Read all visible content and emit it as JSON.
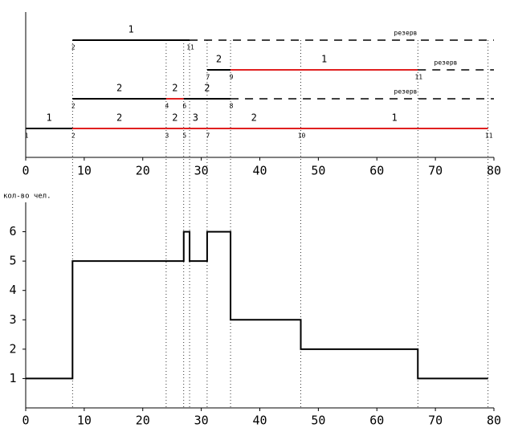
{
  "chart_data": [
    {
      "type": "gantt",
      "xlim": [
        0,
        80
      ],
      "xticks": [
        0,
        10,
        20,
        30,
        40,
        50,
        60,
        70,
        80
      ],
      "guides": [
        8,
        24,
        27,
        28,
        31,
        35,
        47,
        67,
        79
      ],
      "rows": [
        {
          "segments": [
            {
              "start": 8,
              "end": 28,
              "label": "1",
              "color": "#000000",
              "dashed": false
            },
            {
              "start": 28,
              "end": 80,
              "label": "резерв",
              "color": "#000000",
              "dashed": true
            }
          ],
          "nodes": [
            {
              "x": 8,
              "label": "2"
            },
            {
              "x": 28,
              "label": "11"
            }
          ]
        },
        {
          "segments": [
            {
              "start": 31,
              "end": 35,
              "label": "2",
              "color": "#000000",
              "dashed": false
            },
            {
              "start": 35,
              "end": 67,
              "label": "1",
              "color": "#e02020",
              "dashed": false
            },
            {
              "start": 67,
              "end": 80,
              "label": "резерв",
              "color": "#000000",
              "dashed": true
            }
          ],
          "nodes": [
            {
              "x": 31,
              "label": "7"
            },
            {
              "x": 35,
              "label": "9"
            },
            {
              "x": 67,
              "label": "11"
            }
          ]
        },
        {
          "segments": [
            {
              "start": 8,
              "end": 24,
              "label": "2",
              "color": "#000000",
              "dashed": false
            },
            {
              "start": 24,
              "end": 27,
              "label": "2",
              "color": "#e02020",
              "dashed": false
            },
            {
              "start": 27,
              "end": 35,
              "label": "2",
              "color": "#000000",
              "dashed": false
            },
            {
              "start": 35,
              "end": 80,
              "label": "резерв",
              "color": "#000000",
              "dashed": true
            }
          ],
          "nodes": [
            {
              "x": 8,
              "label": "2"
            },
            {
              "x": 24,
              "label": "4"
            },
            {
              "x": 27,
              "label": "6"
            },
            {
              "x": 35,
              "label": "8"
            }
          ]
        },
        {
          "segments": [
            {
              "start": 0,
              "end": 8,
              "label": "1",
              "color": "#000000",
              "dashed": false
            },
            {
              "start": 8,
              "end": 24,
              "label": "2",
              "color": "#e02020",
              "dashed": false
            },
            {
              "start": 24,
              "end": 27,
              "label": "2",
              "color": "#e02020",
              "dashed": false
            },
            {
              "start": 27,
              "end": 31,
              "label": "3",
              "color": "#e02020",
              "dashed": false
            },
            {
              "start": 31,
              "end": 47,
              "label": "2",
              "color": "#e02020",
              "dashed": false
            },
            {
              "start": 47,
              "end": 79,
              "label": "1",
              "color": "#e02020",
              "dashed": false
            }
          ],
          "nodes": [
            {
              "x": 0,
              "label": "1"
            },
            {
              "x": 8,
              "label": "2"
            },
            {
              "x": 24,
              "label": "3"
            },
            {
              "x": 27,
              "label": "5"
            },
            {
              "x": 31,
              "label": "7"
            },
            {
              "x": 47,
              "label": "10"
            },
            {
              "x": 79,
              "label": "11"
            }
          ]
        }
      ]
    },
    {
      "type": "step",
      "y_label": "кол-во чел.",
      "xlim": [
        0,
        80
      ],
      "xticks": [
        0,
        10,
        20,
        30,
        40,
        50,
        60,
        70,
        80
      ],
      "ylim": [
        0,
        7
      ],
      "yticks": [
        1,
        2,
        3,
        4,
        5,
        6
      ],
      "x": [
        0,
        8,
        27,
        28,
        31,
        35,
        47,
        67,
        79
      ],
      "values": [
        1,
        5,
        6,
        5,
        6,
        3,
        2,
        1,
        1
      ],
      "color": "#000000"
    }
  ]
}
